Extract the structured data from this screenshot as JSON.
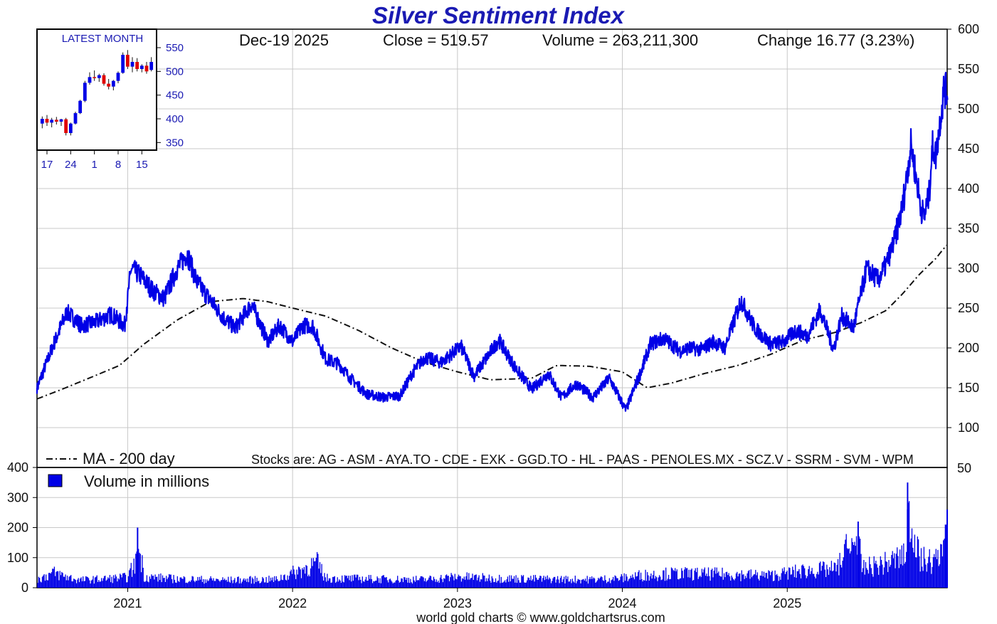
{
  "colors": {
    "series": "#0000e6",
    "title": "#1a1ab3",
    "down": "#e00000",
    "ma": "#111111",
    "grid": "#c8c8c8",
    "frame": "#000000"
  },
  "chart_data": {
    "type": "line",
    "title": "Silver Sentiment Index",
    "info": {
      "date": "Dec-19  2025",
      "close": "Close = 519.57",
      "volume": "Volume = 263,211,300",
      "change": "Change 16.77 (3.23%)"
    },
    "x_axis": {
      "labels": [
        "2021",
        "2022",
        "2023",
        "2024",
        "2025"
      ],
      "label_dates": [
        2021.0,
        2022.0,
        2023.0,
        2024.0,
        2025.0
      ],
      "range": [
        2020.45,
        2025.97
      ]
    },
    "y_axis_price": {
      "ticks": [
        100,
        150,
        200,
        250,
        300,
        350,
        400,
        450,
        500,
        550,
        600
      ],
      "range": [
        50,
        600
      ]
    },
    "y_axis_volume": {
      "ticks": [
        0,
        100,
        200,
        300,
        400
      ],
      "range": [
        0,
        400
      ],
      "right_label": "50"
    },
    "legend": {
      "ma": "MA - 200 day",
      "volume": "Volume in millions",
      "stocks": "Stocks are: AG - ASM - AYA.TO - CDE - EXK - GGD.TO - HL - PAAS - PENOLES.MX - SCZ.V - SSRM - SVM - WPM"
    },
    "footer": "world gold charts © www.goldchartsrus.com",
    "series": [
      {
        "name": "Silver Sentiment Index",
        "x": [
          2020.45,
          2020.55,
          2020.63,
          2020.72,
          2020.8,
          2020.9,
          2020.98,
          2021.02,
          2021.08,
          2021.15,
          2021.22,
          2021.3,
          2021.36,
          2021.42,
          2021.5,
          2021.58,
          2021.65,
          2021.75,
          2021.85,
          2021.92,
          2022.0,
          2022.06,
          2022.12,
          2022.2,
          2022.28,
          2022.35,
          2022.45,
          2022.55,
          2022.65,
          2022.73,
          2022.8,
          2022.9,
          2023.02,
          2023.1,
          2023.15,
          2023.25,
          2023.35,
          2023.45,
          2023.55,
          2023.63,
          2023.72,
          2023.82,
          2023.92,
          2024.02,
          2024.12,
          2024.17,
          2024.25,
          2024.35,
          2024.4,
          2024.48,
          2024.55,
          2024.62,
          2024.72,
          2024.8,
          2024.9,
          2024.98,
          2025.05,
          2025.12,
          2025.2,
          2025.28,
          2025.33,
          2025.4,
          2025.48,
          2025.55,
          2025.6,
          2025.65,
          2025.7,
          2025.75,
          2025.78,
          2025.81,
          2025.83,
          2025.86,
          2025.88,
          2025.9,
          2025.93,
          2025.95,
          2025.97
        ],
        "values": [
          150,
          205,
          245,
          228,
          232,
          242,
          228,
          300,
          290,
          272,
          262,
          300,
          318,
          282,
          260,
          238,
          225,
          255,
          208,
          228,
          208,
          228,
          228,
          186,
          180,
          162,
          142,
          138,
          140,
          170,
          188,
          182,
          202,
          165,
          180,
          210,
          175,
          148,
          168,
          138,
          155,
          138,
          162,
          122,
          175,
          205,
          212,
          196,
          200,
          198,
          208,
          200,
          260,
          225,
          205,
          208,
          222,
          215,
          248,
          198,
          240,
          225,
          300,
          285,
          305,
          335,
          380,
          455,
          415,
          375,
          365,
          395,
          455,
          440,
          492,
          525,
          520
        ]
      },
      {
        "name": "MA - 200 day",
        "x": [
          2020.45,
          2020.6,
          2020.8,
          2020.95,
          2021.1,
          2021.3,
          2021.5,
          2021.7,
          2021.85,
          2022.0,
          2022.2,
          2022.4,
          2022.6,
          2022.8,
          2023.0,
          2023.2,
          2023.45,
          2023.6,
          2023.8,
          2024.0,
          2024.15,
          2024.3,
          2024.5,
          2024.7,
          2024.9,
          2025.1,
          2025.3,
          2025.45,
          2025.6,
          2025.7,
          2025.8,
          2025.9,
          2025.97
        ],
        "values": [
          136,
          148,
          165,
          178,
          205,
          235,
          258,
          262,
          258,
          250,
          240,
          222,
          200,
          182,
          170,
          160,
          162,
          178,
          177,
          170,
          150,
          156,
          168,
          178,
          192,
          210,
          220,
          232,
          247,
          268,
          292,
          312,
          330
        ]
      },
      {
        "name": "Volume in millions",
        "x": [
          2020.45,
          2020.55,
          2020.7,
          2020.85,
          2021.0,
          2021.05,
          2021.06,
          2021.1,
          2021.3,
          2021.6,
          2021.9,
          2022.15,
          2022.2,
          2022.5,
          2022.8,
          2023.0,
          2023.2,
          2023.5,
          2023.8,
          2024.0,
          2024.1,
          2024.3,
          2024.6,
          2024.9,
          2025.1,
          2025.3,
          2025.43,
          2025.45,
          2025.6,
          2025.72,
          2025.73,
          2025.8,
          2025.9,
          2025.96,
          2025.97
        ],
        "values": [
          30,
          55,
          28,
          32,
          38,
          95,
          200,
          40,
          32,
          28,
          30,
          90,
          35,
          32,
          30,
          40,
          35,
          32,
          30,
          35,
          45,
          52,
          50,
          45,
          62,
          68,
          220,
          70,
          90,
          120,
          350,
          105,
          95,
          210,
          260
        ]
      }
    ],
    "inset": {
      "label": "LATEST MONTH",
      "x_labels": [
        "17",
        "24",
        "1",
        "8",
        "15"
      ],
      "y_ticks": [
        350,
        400,
        450,
        500,
        550
      ],
      "y_range": [
        340,
        580
      ],
      "candles": [
        [
          390,
          405,
          380,
          400
        ],
        [
          400,
          408,
          385,
          392
        ],
        [
          392,
          402,
          382,
          398
        ],
        [
          398,
          404,
          388,
          394
        ],
        [
          394,
          400,
          385,
          399
        ],
        [
          399,
          402,
          365,
          370
        ],
        [
          370,
          392,
          365,
          390
        ],
        [
          390,
          415,
          388,
          412
        ],
        [
          412,
          440,
          410,
          438
        ],
        [
          438,
          480,
          435,
          476
        ],
        [
          476,
          498,
          472,
          488
        ],
        [
          488,
          502,
          480,
          486
        ],
        [
          486,
          495,
          478,
          492
        ],
        [
          492,
          496,
          470,
          474
        ],
        [
          474,
          484,
          462,
          468
        ],
        [
          468,
          482,
          460,
          480
        ],
        [
          480,
          500,
          475,
          497
        ],
        [
          497,
          540,
          495,
          535
        ],
        [
          535,
          545,
          505,
          510
        ],
        [
          510,
          530,
          498,
          520
        ],
        [
          520,
          528,
          500,
          505
        ],
        [
          505,
          515,
          498,
          512
        ],
        [
          512,
          520,
          495,
          500
        ],
        [
          503,
          530,
          500,
          520
        ]
      ]
    }
  }
}
